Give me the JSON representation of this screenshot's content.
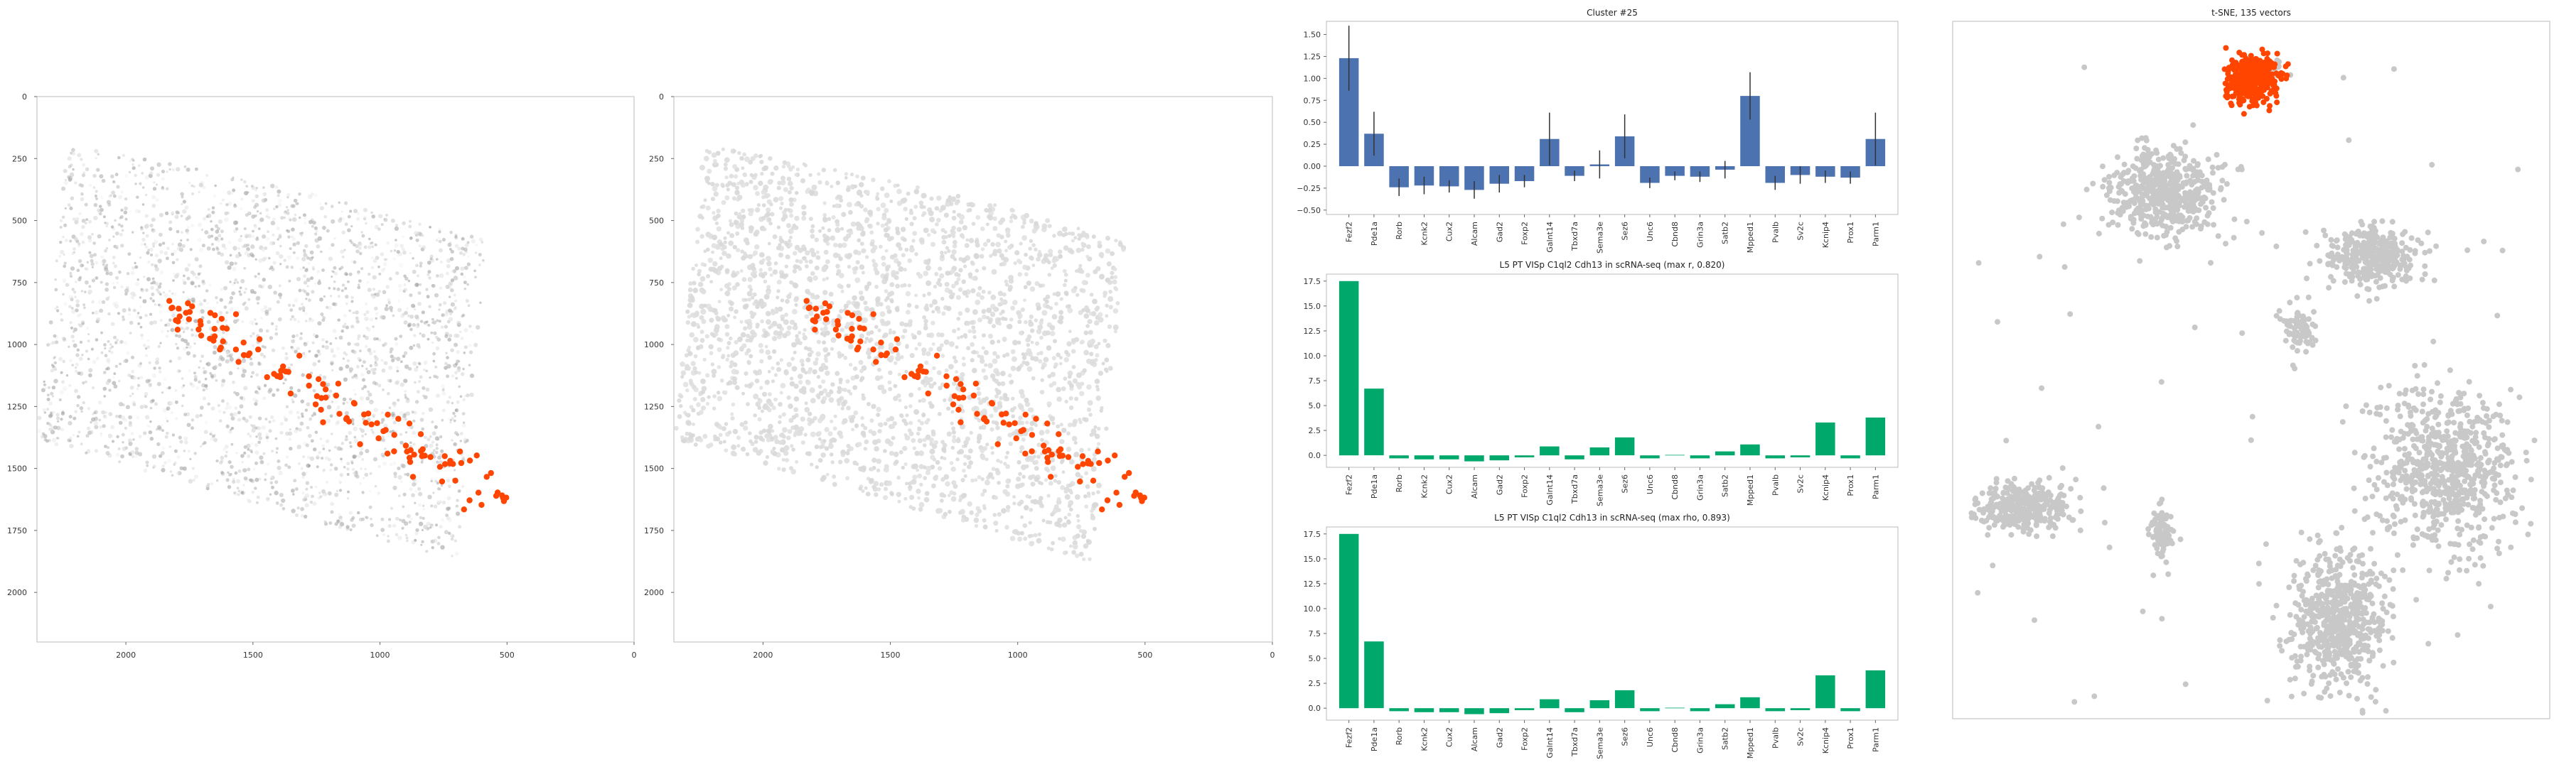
{
  "colors": {
    "highlight": "#ff4500",
    "bar_blue": "#4c72b0",
    "bar_green": "#00a86b",
    "gray_point": "#c8c8c8",
    "axis": "#bbbbbb"
  },
  "chart_data": [
    {
      "type": "scatter",
      "panel": "spatial-raw",
      "title": "",
      "xlabel": "",
      "ylabel": "",
      "xlim": [
        2350,
        0
      ],
      "ylim": [
        2200,
        0
      ],
      "x_ticks": [
        "2000",
        "1500",
        "1000",
        "500",
        "0"
      ],
      "y_ticks": [
        "0",
        "250",
        "500",
        "750",
        "1000",
        "1250",
        "1500",
        "1750",
        "2000"
      ],
      "grid": false
    },
    {
      "type": "scatter",
      "panel": "spatial-cluster",
      "title": "",
      "xlabel": "",
      "ylabel": "",
      "xlim": [
        2350,
        0
      ],
      "ylim": [
        2200,
        0
      ],
      "x_ticks": [
        "2000",
        "1500",
        "1000",
        "500",
        "0"
      ],
      "y_ticks": [
        "0",
        "250",
        "500",
        "750",
        "1000",
        "1250",
        "1500",
        "1750",
        "2000"
      ],
      "grid": false
    },
    {
      "type": "bar",
      "panel": "cluster-profile",
      "title": "Cluster #25",
      "categories": [
        "Fezf2",
        "Pde1a",
        "Rorb",
        "Kcnk2",
        "Cux2",
        "Alcam",
        "Gad2",
        "Foxp2",
        "Galnt14",
        "Tbxd7a",
        "Sema3e",
        "Sez6",
        "Unc6",
        "Cbnd8",
        "Grin3a",
        "Satb2",
        "Mpped1",
        "Pvalb",
        "Sv2c",
        "Kcnip4",
        "Prox1",
        "Parm1"
      ],
      "values": [
        1.23,
        0.37,
        -0.24,
        -0.22,
        -0.23,
        -0.27,
        -0.2,
        -0.17,
        0.31,
        -0.11,
        0.02,
        0.34,
        -0.19,
        -0.11,
        -0.12,
        -0.04,
        0.8,
        -0.19,
        -0.1,
        -0.12,
        -0.13,
        0.31
      ],
      "errors": [
        0.37,
        0.25,
        0.1,
        0.1,
        0.07,
        0.1,
        0.1,
        0.07,
        0.3,
        0.06,
        0.16,
        0.25,
        0.06,
        0.05,
        0.06,
        0.1,
        0.27,
        0.08,
        0.1,
        0.07,
        0.07,
        0.3
      ],
      "ylim": [
        -0.55,
        1.65
      ],
      "y_ticks": [
        "−0.50",
        "−0.25",
        "0.00",
        "0.25",
        "0.50",
        "0.75",
        "1.00",
        "1.25",
        "1.50"
      ],
      "xlabel": "",
      "ylabel": "",
      "grid": false
    },
    {
      "type": "bar",
      "panel": "scrna-pearson",
      "title": "L5 PT VISp C1ql2 Cdh13 in scRNA-seq (max r, 0.820)",
      "categories": [
        "Fezf2",
        "Pde1a",
        "Rorb",
        "Kcnk2",
        "Cux2",
        "Alcam",
        "Gad2",
        "Foxp2",
        "Galnt14",
        "Tbxd7a",
        "Sema3e",
        "Sez6",
        "Unc6",
        "Cbnd8",
        "Grin3a",
        "Satb2",
        "Mpped1",
        "Pvalb",
        "Sv2c",
        "Kcnip4",
        "Prox1",
        "Parm1"
      ],
      "values": [
        17.5,
        6.7,
        -0.3,
        -0.4,
        -0.4,
        -0.6,
        -0.5,
        -0.2,
        0.9,
        -0.4,
        0.8,
        1.8,
        -0.3,
        0.05,
        -0.3,
        0.4,
        1.1,
        -0.3,
        -0.2,
        3.3,
        -0.3,
        3.8
      ],
      "ylim": [
        -1.2,
        18.2
      ],
      "y_ticks": [
        "0.0",
        "2.5",
        "5.0",
        "7.5",
        "10.0",
        "12.5",
        "15.0",
        "17.5"
      ],
      "xlabel": "",
      "ylabel": "",
      "grid": false
    },
    {
      "type": "bar",
      "panel": "scrna-spearman",
      "title": "L5 PT VISp C1ql2 Cdh13 in scRNA-seq (max rho, 0.893)",
      "categories": [
        "Fezf2",
        "Pde1a",
        "Rorb",
        "Kcnk2",
        "Cux2",
        "Alcam",
        "Gad2",
        "Foxp2",
        "Galnt14",
        "Tbxd7a",
        "Sema3e",
        "Sez6",
        "Unc6",
        "Cbnd8",
        "Grin3a",
        "Satb2",
        "Mpped1",
        "Pvalb",
        "Sv2c",
        "Kcnip4",
        "Prox1",
        "Parm1"
      ],
      "values": [
        17.5,
        6.7,
        -0.3,
        -0.4,
        -0.4,
        -0.6,
        -0.5,
        -0.2,
        0.9,
        -0.4,
        0.8,
        1.8,
        -0.3,
        0.05,
        -0.3,
        0.4,
        1.1,
        -0.3,
        -0.2,
        3.3,
        -0.3,
        3.8
      ],
      "ylim": [
        -1.2,
        18.2
      ],
      "y_ticks": [
        "0.0",
        "2.5",
        "5.0",
        "7.5",
        "10.0",
        "12.5",
        "15.0",
        "17.5"
      ],
      "xlabel": "",
      "ylabel": "",
      "grid": false
    },
    {
      "type": "scatter",
      "panel": "tsne",
      "title": "t-SNE, 135 vectors",
      "xlabel": "",
      "ylabel": "",
      "grid": false,
      "clusters": [
        {
          "name": "",
          "highlight": true
        },
        {
          "name": "",
          "highlight": false
        },
        {
          "name": "",
          "highlight": false
        },
        {
          "name": "",
          "highlight": false
        },
        {
          "name": "",
          "highlight": false
        },
        {
          "name": "",
          "highlight": false
        },
        {
          "name": "",
          "highlight": false
        },
        {
          "name": "",
          "highlight": false
        }
      ]
    }
  ]
}
